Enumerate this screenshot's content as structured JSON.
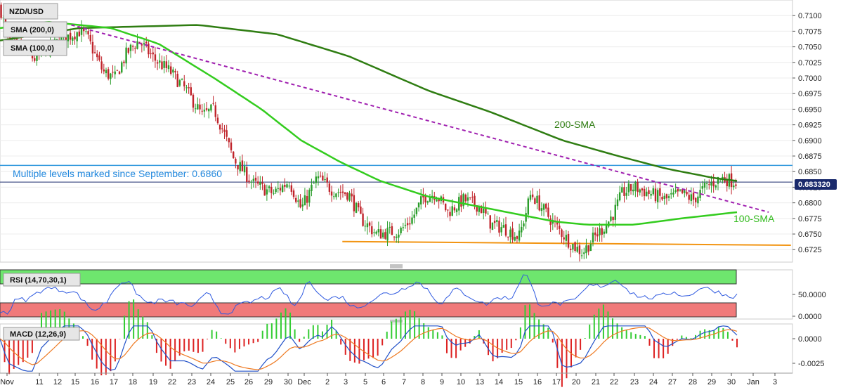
{
  "chart_data": {
    "type": "candlestick",
    "symbol": "NZD/USD",
    "indicators": {
      "sma200": "SMA (200,0)",
      "sma100": "SMA (100,0)"
    },
    "last_price": "0.683320",
    "price_ylim": [
      0.6705,
      0.7125
    ],
    "price_ticks": [
      "0.7100",
      "0.7075",
      "0.7050",
      "0.7025",
      "0.7000",
      "0.6975",
      "0.6950",
      "0.6925",
      "0.6900",
      "0.6875",
      "0.6850",
      "0.6825",
      "0.6800",
      "0.6775",
      "0.6750",
      "0.6725"
    ],
    "x_ticks": [
      "Nov",
      "11",
      "12",
      "15",
      "16",
      "17",
      "18",
      "19",
      "22",
      "23",
      "24",
      "25",
      "26",
      "29",
      "30",
      "Dec",
      "2",
      "3",
      "5",
      "6",
      "7",
      "8",
      "9",
      "10",
      "13",
      "14",
      "15",
      "16",
      "17",
      "20",
      "21",
      "22",
      "23",
      "24",
      "27",
      "28",
      "29",
      "30",
      "Jan",
      "3"
    ],
    "annotations": {
      "horizontal_level": "Multiple levels marked since September: 0.6860",
      "sma200_label": "200-SMA",
      "sma100_label": "100-SMA"
    },
    "levels": {
      "resistance": 0.686,
      "support_start": 0.6738,
      "support_end": 0.6732,
      "last": 0.68332
    },
    "waypoints": [
      [
        0.7115,
        0
      ],
      [
        0.706,
        0.01
      ],
      [
        0.703,
        0.045
      ],
      [
        0.706,
        0.075
      ],
      [
        0.7075,
        0.1
      ],
      [
        0.7065,
        0.11
      ],
      [
        0.701,
        0.13
      ],
      [
        0.7,
        0.145
      ],
      [
        0.704,
        0.16
      ],
      [
        0.706,
        0.175
      ],
      [
        0.703,
        0.195
      ],
      [
        0.701,
        0.215
      ],
      [
        0.698,
        0.235
      ],
      [
        0.694,
        0.255
      ],
      [
        0.695,
        0.27
      ],
      [
        0.692,
        0.28
      ],
      [
        0.687,
        0.295
      ],
      [
        0.683,
        0.32
      ],
      [
        0.6815,
        0.345
      ],
      [
        0.6835,
        0.365
      ],
      [
        0.679,
        0.38
      ],
      [
        0.684,
        0.4
      ],
      [
        0.682,
        0.42
      ],
      [
        0.6815,
        0.44
      ],
      [
        0.6775,
        0.455
      ],
      [
        0.675,
        0.475
      ],
      [
        0.6755,
        0.505
      ],
      [
        0.6775,
        0.52
      ],
      [
        0.681,
        0.535
      ],
      [
        0.6815,
        0.55
      ],
      [
        0.6785,
        0.565
      ],
      [
        0.6805,
        0.585
      ],
      [
        0.6795,
        0.605
      ],
      [
        0.6765,
        0.62
      ],
      [
        0.676,
        0.635
      ],
      [
        0.6745,
        0.655
      ],
      [
        0.6815,
        0.67
      ],
      [
        0.679,
        0.685
      ],
      [
        0.6765,
        0.7
      ],
      [
        0.6735,
        0.72
      ],
      [
        0.672,
        0.735
      ],
      [
        0.6745,
        0.75
      ],
      [
        0.6765,
        0.765
      ],
      [
        0.6785,
        0.775
      ],
      [
        0.6815,
        0.785
      ],
      [
        0.6825,
        0.8
      ],
      [
        0.6815,
        0.82
      ],
      [
        0.6805,
        0.84
      ],
      [
        0.6815,
        0.86
      ],
      [
        0.6805,
        0.875
      ],
      [
        0.6825,
        0.89
      ],
      [
        0.684,
        0.91
      ],
      [
        0.6833,
        0.93
      ]
    ],
    "sma200_curve": [
      [
        0.706,
        0
      ],
      [
        0.708,
        0.1
      ],
      [
        0.7085,
        0.25
      ],
      [
        0.707,
        0.35
      ],
      [
        0.7035,
        0.44
      ],
      [
        0.698,
        0.54
      ],
      [
        0.6945,
        0.62
      ],
      [
        0.69,
        0.71
      ],
      [
        0.6875,
        0.78
      ],
      [
        0.6855,
        0.84
      ],
      [
        0.684,
        0.9
      ],
      [
        0.6835,
        0.93
      ]
    ],
    "sma100_curve": [
      [
        0.708,
        0
      ],
      [
        0.709,
        0.06
      ],
      [
        0.708,
        0.14
      ],
      [
        0.7055,
        0.2
      ],
      [
        0.7,
        0.27
      ],
      [
        0.695,
        0.33
      ],
      [
        0.69,
        0.38
      ],
      [
        0.6865,
        0.43
      ],
      [
        0.6835,
        0.48
      ],
      [
        0.681,
        0.54
      ],
      [
        0.6795,
        0.6
      ],
      [
        0.678,
        0.66
      ],
      [
        0.677,
        0.7
      ],
      [
        0.6765,
        0.74
      ],
      [
        0.6765,
        0.8
      ],
      [
        0.6775,
        0.86
      ],
      [
        0.6785,
        0.93
      ]
    ],
    "trendline": [
      [
        0.7085,
        0.09
      ],
      [
        0.6785,
        0.97
      ]
    ],
    "rsi": {
      "label": "RSI (14,70,30,1)",
      "ylim": [
        0,
        100
      ],
      "ticks": [
        "50.0000",
        "0.0000"
      ],
      "overbought": 70,
      "oversold": 30
    },
    "macd": {
      "label": "MACD (12,26,9)",
      "ylim": [
        -0.0035,
        0.0015
      ],
      "ticks": [
        "0.0000",
        "-0.0025"
      ]
    },
    "colors": {
      "up": "#2a9d2a",
      "down": "#c0242b",
      "sma200": "#2f7d12",
      "sma100": "#33cc1e",
      "trendline": "#a020b0",
      "resistance": "#3399dd",
      "support": "#f29411",
      "last_line": "#1a2a6c",
      "rsi_line": "#2f5ae0",
      "macd_line": "#2050c8",
      "signal_line": "#ee7a22"
    }
  }
}
